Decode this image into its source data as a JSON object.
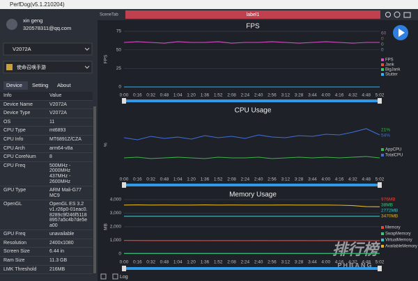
{
  "window_title": "PerfDog(v5.1.210204)",
  "user": {
    "name": "xin geng",
    "email": "320578311@qq.com"
  },
  "device": "V2072A",
  "app": "使命召唤手游",
  "tabs": [
    "Device",
    "Setting",
    "About"
  ],
  "table": {
    "header": [
      "Info",
      "Value"
    ],
    "rows": [
      [
        "Device Name",
        "V2072A"
      ],
      [
        "Device Type",
        "V2072A"
      ],
      [
        "OS",
        "11"
      ],
      [
        "CPU Type",
        "mt6893"
      ],
      [
        "CPU Info",
        "MT6891Z/CZA"
      ],
      [
        "CPU Arch",
        "arm64-v8a"
      ],
      [
        "CPU CoreNum",
        "8"
      ],
      [
        "CPU Freq",
        "500MHz -\n2000MHz\n437MHz -\n2600MHz"
      ],
      [
        "GPU Type",
        "ARM Mali-G77\nMC9"
      ],
      [
        "OpenGL",
        "OpenGL ES 3.2\nv1.r26p0-01eac0.\n8289c9f246f5118\n8957a5c4b7de5e\na00"
      ],
      [
        "GPU Freq",
        "unavailable"
      ],
      [
        "Resolution",
        "2400x1080"
      ],
      [
        "Screen Size",
        "6.44 in"
      ],
      [
        "Ram Size",
        "11.3 GB"
      ],
      [
        "LMK Threshold",
        "216MB"
      ]
    ]
  },
  "scene_tab": "SceneTab",
  "label": "label1",
  "log_checkbox": "Log",
  "watermark": {
    "main": "排行榜",
    "sub": "PHBANG"
  },
  "chart_data": [
    {
      "type": "line",
      "title": "FPS",
      "y_label": "FPS",
      "categories": [
        "0:00",
        "0:16",
        "0:32",
        "0:48",
        "1:04",
        "1:20",
        "1:36",
        "1:52",
        "2:08",
        "2:24",
        "2:40",
        "2:56",
        "3:12",
        "3:28",
        "3:44",
        "4:00",
        "4:16",
        "4:32",
        "4:48",
        "5:02"
      ],
      "ylim": [
        0,
        75
      ],
      "yticks": [
        0,
        25,
        50,
        75
      ],
      "grid": true,
      "series": [
        {
          "name": "FPS",
          "color": "#d94fc5",
          "latest": "60",
          "values": [
            60,
            61,
            60,
            59,
            61,
            60,
            60,
            61,
            59,
            60,
            60,
            61,
            60,
            59,
            60,
            61,
            60,
            59,
            60,
            60
          ]
        },
        {
          "name": "Jank",
          "color": "#e8503c",
          "latest": "0",
          "values": [
            0,
            0,
            0,
            0,
            0,
            0,
            0,
            0,
            0,
            0,
            0,
            0,
            0,
            0,
            0,
            0,
            0,
            0,
            0,
            0
          ]
        },
        {
          "name": "BigJank",
          "color": "#3cc87a",
          "latest": "0",
          "values": [
            0,
            0,
            0,
            0,
            0,
            0,
            0,
            0,
            0,
            0,
            0,
            0,
            0,
            0,
            0,
            0,
            0,
            0,
            0,
            0
          ]
        },
        {
          "name": "Stutter",
          "color": "#29b6f6",
          "latest": "0",
          "values": [
            0,
            0,
            0,
            0,
            0,
            0,
            0,
            0,
            0,
            0,
            0,
            0,
            0,
            0,
            0,
            0,
            0,
            0,
            0,
            0
          ]
        }
      ]
    },
    {
      "type": "line",
      "title": "CPU Usage",
      "y_label": "%",
      "categories": [
        "0:00",
        "0:16",
        "0:32",
        "0:48",
        "1:04",
        "1:20",
        "1:36",
        "1:52",
        "2:08",
        "2:24",
        "2:40",
        "2:56",
        "3:12",
        "3:28",
        "3:44",
        "4:00",
        "4:16",
        "4:32",
        "4:48",
        "5:02"
      ],
      "ylim": [
        0,
        80
      ],
      "grid": false,
      "series": [
        {
          "name": "AppCPU",
          "color": "#3cb54a",
          "latest": "21%",
          "values": [
            21,
            22,
            20,
            21,
            22,
            21,
            20,
            22,
            21,
            21,
            22,
            20,
            21,
            22,
            21,
            22,
            21,
            22,
            23,
            21
          ]
        },
        {
          "name": "TotalCPU",
          "color": "#3f6fd8",
          "latest": "54%",
          "values": [
            50,
            47,
            52,
            49,
            51,
            48,
            53,
            50,
            52,
            49,
            54,
            51,
            50,
            53,
            52,
            55,
            54,
            58,
            63,
            54
          ]
        }
      ]
    },
    {
      "type": "line",
      "title": "Memory Usage",
      "y_label": "MB",
      "categories": [
        "0:00",
        "0:16",
        "0:32",
        "0:48",
        "1:04",
        "1:20",
        "1:36",
        "1:52",
        "2:08",
        "2:24",
        "2:40",
        "2:56",
        "3:12",
        "3:28",
        "3:44",
        "4:00",
        "4:16",
        "4:32",
        "4:48",
        "5:02"
      ],
      "ylim": [
        0,
        4000
      ],
      "yticks": [
        0,
        {
          "value": 1000,
          "label": "1,000"
        },
        {
          "value": 2000,
          "label": "2,000"
        },
        {
          "value": 3000,
          "label": "3,000"
        },
        {
          "value": 4000,
          "label": "4,000"
        }
      ],
      "grid": true,
      "series": [
        {
          "name": "Memory",
          "color": "#e8453c",
          "latest": "976MB",
          "values": [
            990,
            985,
            980,
            982,
            978,
            980,
            976,
            978,
            980,
            976,
            978,
            976,
            980,
            978,
            976,
            978,
            976,
            976,
            978,
            976
          ]
        },
        {
          "name": "SwapMemory",
          "color": "#3cc87a",
          "latest": "38MB",
          "values": [
            38,
            38,
            38,
            38,
            38,
            38,
            38,
            38,
            38,
            38,
            38,
            38,
            38,
            38,
            38,
            38,
            38,
            38,
            38,
            38
          ]
        },
        {
          "name": "VirtualMemory",
          "color": "#39c6c6",
          "latest": "2772MB",
          "values": [
            2772,
            2772,
            2772,
            2772,
            2772,
            2772,
            2772,
            2772,
            2772,
            2772,
            2772,
            2772,
            2772,
            2772,
            2772,
            2772,
            2772,
            2772,
            2772,
            2772
          ]
        },
        {
          "name": "AvailableMemory",
          "color": "#e6b422",
          "latest": "3470MB",
          "values": [
            3600,
            3610,
            3600,
            3605,
            3600,
            3600,
            3610,
            3600,
            3605,
            3600,
            3600,
            3600,
            3605,
            3600,
            3600,
            3600,
            3590,
            3560,
            3480,
            3470
          ]
        }
      ]
    }
  ]
}
